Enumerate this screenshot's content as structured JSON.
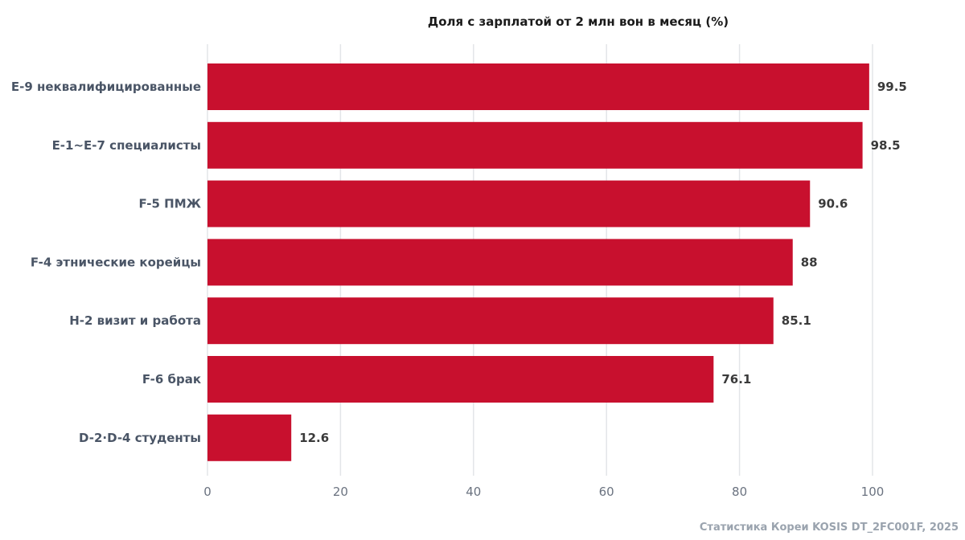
{
  "chart_data": {
    "type": "bar",
    "orientation": "horizontal",
    "title": "Доля с зарплатой от 2 млн вон в месяц (%)",
    "xlabel": "",
    "ylabel": "",
    "categories": [
      "E-9 неквалифицированные",
      "E-1~E-7 специалисты",
      "F-5 ПМЖ",
      "F-4 этнические корейцы",
      "H-2 визит и работа",
      "F-6 брак",
      "D-2·D-4 студенты"
    ],
    "values": [
      99.5,
      98.5,
      90.6,
      88,
      85.1,
      76.1,
      12.6
    ],
    "value_labels": [
      "99.5",
      "98.5",
      "90.6",
      "88",
      "85.1",
      "76.1",
      "12.6"
    ],
    "xlim": [
      0,
      100
    ],
    "xticks": [
      0,
      20,
      40,
      60,
      80,
      100
    ],
    "grid": true,
    "bar_color": "#c8102e"
  },
  "source": "Статистика Кореи KOSIS DT_2FC001F, 2025"
}
